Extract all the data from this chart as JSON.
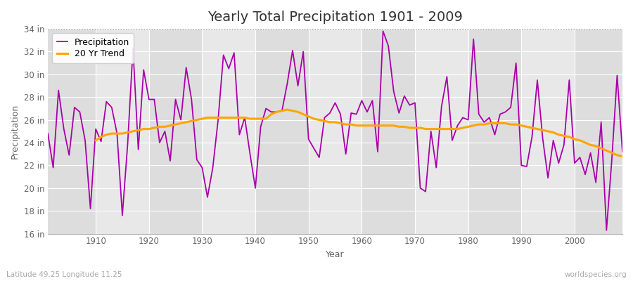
{
  "title": "Yearly Total Precipitation 1901 - 2009",
  "xlabel": "Year",
  "ylabel": "Precipitation",
  "subtitle_left": "Latitude 49.25 Longitude 11.25",
  "subtitle_right": "worldspecies.org",
  "ylim": [
    16,
    34
  ],
  "xlim": [
    1901,
    2009
  ],
  "yticks": [
    16,
    18,
    20,
    22,
    24,
    26,
    28,
    30,
    32,
    34
  ],
  "ytick_labels": [
    "16 in",
    "18 in",
    "20 in",
    "22 in",
    "24 in",
    "26 in",
    "28 in",
    "30 in",
    "32 in",
    "34 in"
  ],
  "xticks": [
    1910,
    1920,
    1930,
    1940,
    1950,
    1960,
    1970,
    1980,
    1990,
    2000
  ],
  "years": [
    1901,
    1902,
    1903,
    1904,
    1905,
    1906,
    1907,
    1908,
    1909,
    1910,
    1911,
    1912,
    1913,
    1914,
    1915,
    1916,
    1917,
    1918,
    1919,
    1920,
    1921,
    1922,
    1923,
    1924,
    1925,
    1926,
    1927,
    1928,
    1929,
    1930,
    1931,
    1932,
    1933,
    1934,
    1935,
    1936,
    1937,
    1938,
    1939,
    1940,
    1941,
    1942,
    1943,
    1944,
    1945,
    1946,
    1947,
    1948,
    1949,
    1950,
    1951,
    1952,
    1953,
    1954,
    1955,
    1956,
    1957,
    1958,
    1959,
    1960,
    1961,
    1962,
    1963,
    1964,
    1965,
    1966,
    1967,
    1968,
    1969,
    1970,
    1971,
    1972,
    1973,
    1974,
    1975,
    1976,
    1977,
    1978,
    1979,
    1980,
    1981,
    1982,
    1983,
    1984,
    1985,
    1986,
    1987,
    1988,
    1989,
    1990,
    1991,
    1992,
    1993,
    1994,
    1995,
    1996,
    1997,
    1998,
    1999,
    2000,
    2001,
    2002,
    2003,
    2004,
    2005,
    2006,
    2007,
    2008,
    2009
  ],
  "precip": [
    24.8,
    21.8,
    28.6,
    25.2,
    22.9,
    27.1,
    26.7,
    24.2,
    18.2,
    25.2,
    24.1,
    27.6,
    27.1,
    24.8,
    17.6,
    23.9,
    32.3,
    23.4,
    30.4,
    27.8,
    27.8,
    24.0,
    25.0,
    22.4,
    27.8,
    26.0,
    30.6,
    27.8,
    22.5,
    21.8,
    19.2,
    21.8,
    26.0,
    31.7,
    30.5,
    31.9,
    24.7,
    26.2,
    23.0,
    20.0,
    25.4,
    27.0,
    26.7,
    26.7,
    26.8,
    29.2,
    32.1,
    29.0,
    32.0,
    24.3,
    23.5,
    22.7,
    26.2,
    26.6,
    27.5,
    26.5,
    23.0,
    26.6,
    26.5,
    27.7,
    26.7,
    27.7,
    23.2,
    33.8,
    32.5,
    28.5,
    26.6,
    28.1,
    27.3,
    27.5,
    20.0,
    19.7,
    25.0,
    21.8,
    27.2,
    29.8,
    24.2,
    25.5,
    26.2,
    26.0,
    33.1,
    26.5,
    25.8,
    26.2,
    24.7,
    26.5,
    26.7,
    27.1,
    31.0,
    22.0,
    21.9,
    24.5,
    29.5,
    24.4,
    20.9,
    24.2,
    22.2,
    23.8,
    29.5,
    22.2,
    22.7,
    21.2,
    23.1,
    20.5,
    25.8,
    16.3,
    22.5,
    29.9,
    23.2
  ],
  "trend_years": [
    1910,
    1911,
    1912,
    1913,
    1914,
    1915,
    1916,
    1917,
    1918,
    1919,
    1920,
    1921,
    1922,
    1923,
    1924,
    1925,
    1926,
    1927,
    1928,
    1929,
    1930,
    1931,
    1932,
    1933,
    1934,
    1935,
    1936,
    1937,
    1938,
    1939,
    1940,
    1941,
    1942,
    1943,
    1944,
    1945,
    1946,
    1947,
    1948,
    1949,
    1950,
    1951,
    1952,
    1953,
    1954,
    1955,
    1956,
    1957,
    1958,
    1959,
    1960,
    1961,
    1962,
    1963,
    1964,
    1965,
    1966,
    1967,
    1968,
    1969,
    1970,
    1971,
    1972,
    1973,
    1974,
    1975,
    1976,
    1977,
    1978,
    1979,
    1980,
    1981,
    1982,
    1983,
    1984,
    1985,
    1986,
    1987,
    1988,
    1989,
    1990,
    1991,
    1992,
    1993,
    1994,
    1995,
    1996,
    1997,
    1998,
    1999,
    2000,
    2001,
    2002,
    2003,
    2004,
    2005,
    2006,
    2007,
    2008,
    2009
  ],
  "trend": [
    24.2,
    24.5,
    24.7,
    24.8,
    24.8,
    24.8,
    24.9,
    25.0,
    25.1,
    25.2,
    25.2,
    25.3,
    25.4,
    25.4,
    25.5,
    25.6,
    25.7,
    25.8,
    25.9,
    26.0,
    26.1,
    26.2,
    26.2,
    26.2,
    26.2,
    26.2,
    26.2,
    26.2,
    26.2,
    26.1,
    26.1,
    26.1,
    26.1,
    26.5,
    26.7,
    26.8,
    26.9,
    26.8,
    26.7,
    26.5,
    26.3,
    26.1,
    26.0,
    25.9,
    25.8,
    25.8,
    25.7,
    25.6,
    25.6,
    25.5,
    25.5,
    25.5,
    25.5,
    25.5,
    25.5,
    25.5,
    25.5,
    25.4,
    25.4,
    25.3,
    25.3,
    25.3,
    25.2,
    25.2,
    25.2,
    25.2,
    25.2,
    25.2,
    25.2,
    25.3,
    25.4,
    25.5,
    25.6,
    25.6,
    25.7,
    25.7,
    25.7,
    25.7,
    25.6,
    25.6,
    25.5,
    25.4,
    25.3,
    25.2,
    25.1,
    25.0,
    24.9,
    24.7,
    24.6,
    24.5,
    24.3,
    24.2,
    24.0,
    23.8,
    23.7,
    23.5,
    23.3,
    23.1,
    22.9,
    22.8
  ],
  "precip_color": "#aa00aa",
  "trend_color": "#FFA500",
  "fig_bg_color": "#ffffff",
  "plot_bg_color": "#e8e8e8",
  "col_even_color": "#dddddd",
  "col_odd_color": "#e8e8e8",
  "grid_color": "#ffffff",
  "title_color": "#333333",
  "label_color": "#666666",
  "tick_color": "#666666",
  "title_fontsize": 14,
  "label_fontsize": 9,
  "tick_fontsize": 8.5
}
